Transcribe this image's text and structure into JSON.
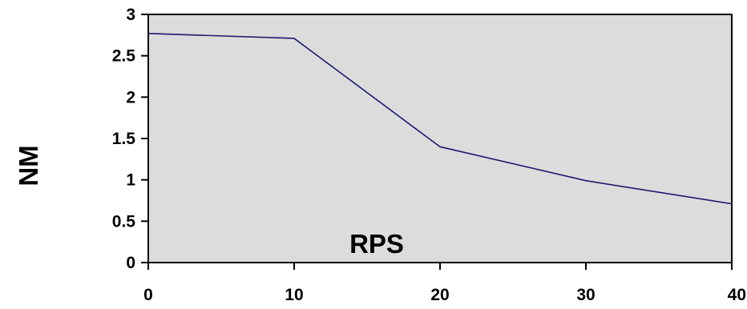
{
  "chart_data": {
    "type": "line",
    "title": "",
    "xlabel": "RPS",
    "ylabel": "NM",
    "x": [
      0,
      10,
      20,
      30,
      40
    ],
    "series": [
      {
        "values": [
          2.77,
          2.71,
          1.4,
          0.99,
          0.71
        ]
      }
    ],
    "xlim": [
      0,
      40
    ],
    "ylim": [
      0,
      3
    ],
    "x_ticks": [
      "0",
      "10",
      "20",
      "30",
      "40"
    ],
    "y_ticks": [
      "0",
      "0.5",
      "1",
      "1.5",
      "2",
      "2.5",
      "3"
    ],
    "grid": false,
    "legend": "none",
    "colors": {
      "plot_background": "#dcdcdc",
      "line": "#1f1a6e",
      "axis": "#000000"
    }
  }
}
